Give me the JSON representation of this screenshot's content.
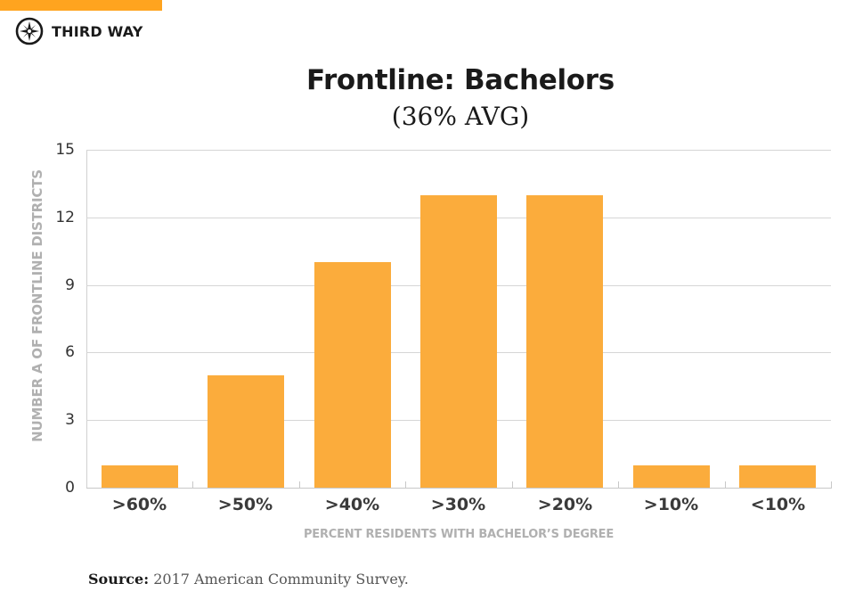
{
  "brand": {
    "name": "THIRD WAY",
    "logo_icon": "compass-star-icon",
    "accent_color": "#FFA41F"
  },
  "header": {
    "title": "Frontline: Bachelors",
    "subtitle": "(36% AVG)"
  },
  "source": {
    "label": "Source:",
    "text": " 2017 American Community Survey."
  },
  "chart_data": {
    "type": "bar",
    "title": "Frontline: Bachelors",
    "subtitle": "(36% AVG)",
    "categories": [
      ">60%",
      ">50%",
      ">40%",
      ">30%",
      ">20%",
      ">10%",
      "<10%"
    ],
    "values": [
      1,
      5,
      10,
      13,
      13,
      1,
      1
    ],
    "xlabel": "PERCENT RESIDENTS WITH BACHELOR’S DEGREE",
    "ylabel": "NUMBER A OF FRONTLINE DISTRICTS",
    "ylim": [
      0,
      15
    ],
    "yticks": [
      "0",
      "3",
      "6",
      "9",
      "12",
      "15"
    ],
    "grid": true,
    "legend": null,
    "bar_color": "#FBAC3C"
  }
}
